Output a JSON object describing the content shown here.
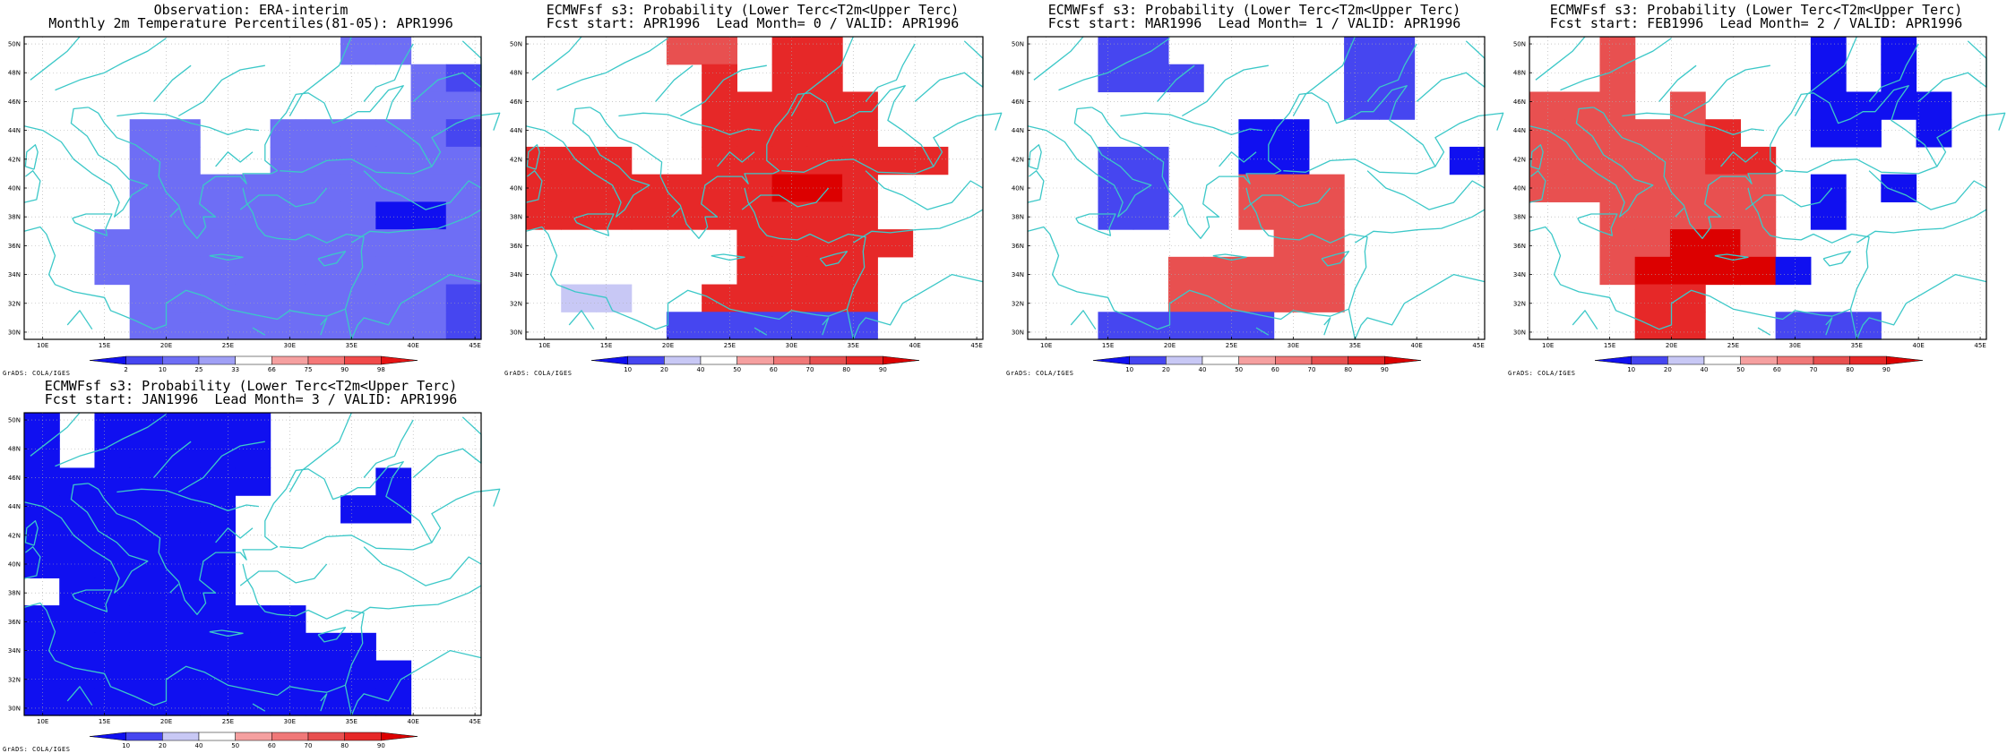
{
  "figure": {
    "lon_ticks": [
      "10E",
      "15E",
      "20E",
      "25E",
      "30E",
      "35E",
      "40E",
      "45E"
    ],
    "lat_ticks": [
      "30N",
      "32N",
      "34N",
      "36N",
      "38N",
      "40N",
      "42N",
      "44N",
      "46N",
      "48N",
      "50N"
    ],
    "credit": "GrADS: COLA/IGES",
    "coastline_color": "#3cc8c8",
    "grid_color": "#aaaaaa"
  },
  "legends": {
    "observation": {
      "levels": [
        "2",
        "10",
        "25",
        "33",
        "66",
        "75",
        "90",
        "98"
      ],
      "colors": [
        "#1010f0",
        "#4646f0",
        "#6e6ef5",
        "#a0a0f5",
        "#ffffff",
        "#f5a0a0",
        "#f57878",
        "#f04a4a",
        "#e61414"
      ]
    },
    "probability": {
      "levels": [
        "10",
        "20",
        "40",
        "50",
        "60",
        "70",
        "80",
        "90"
      ],
      "colors": [
        "#1010f0",
        "#4646f0",
        "#c8c8f5",
        "#ffffff",
        "#f5a0a0",
        "#f07878",
        "#e85050",
        "#e62828",
        "#dc0000"
      ]
    }
  },
  "panels": [
    {
      "id": "obs",
      "title_line1": "Observation: ERA-interim",
      "title_line2": "Monthly 2m Temperature Percentiles(81-05): APR1996",
      "legend": "observation",
      "grid": [
        ".........CC..",
        "...........CB",
        "...........CC",
        "...CC..CCCCCB",
        "...CC..CCCCCC",
        "...CCCCCCCCCC",
        "...CCCCCCCAAC",
        "..CCCCCCCCCCC",
        "..CCCCCCCCCCC",
        "...CCCCCCCCCB",
        "...CCCCCCCCCB"
      ]
    },
    {
      "id": "lead0",
      "title_line1": "ECMWFsf s3: Probability (Lower Terc<T2m<Upper Terc)",
      "title_line2": "Fcst start: APR1996  Lead Month= 0 / VALID: APR1996",
      "legend": "probability",
      "grid": [
        "....GG.HH....",
        ".....H.HH....",
        ".....HHHHH...",
        ".....HHHHH...",
        "HHH..HHHHHHH.",
        "HHHHHHHIIH...",
        "HHHHHHHHHH...",
        "......HHHHH..",
        "......HHHH...",
        ".CC..HHHHH...",
        "....BBBBBB..."
      ]
    },
    {
      "id": "lead1",
      "title_line1": "ECMWFsf s3: Probability (Lower Terc<T2m<Upper Terc)",
      "title_line2": "Fcst start: MAR1996  Lead Month= 1 / VALID: APR1996",
      "legend": "probability",
      "grid": [
        "..BB.....BB..",
        "..BBB....BB..",
        ".........BB..",
        "......AA.....",
        "..BB..AA....A",
        "..BB..GGG....",
        "..BB..GGG....",
        ".......GG....",
        "....GGGGG....",
        "....GGGGG....",
        "..BBBBB......"
      ]
    },
    {
      "id": "lead2",
      "title_line1": "ECMWFsf s3: Probability (Lower Terc<T2m<Upper Terc)",
      "title_line2": "Fcst start: FEB1996  Lead Month= 2 / VALID: APR1996",
      "legend": "probability",
      "grid": [
        "..G.....A.A..",
        "..G.....A.A..",
        "GGG.G...AAAA.",
        "GGGGGH..AA.A.",
        "GGGGGHH......",
        "GGGGGGG.A.A..",
        "..GGGGG.A....",
        "..GGIIG......",
        "..GIIIIA.....",
        "...HH........",
        "...HH..BBB..."
      ]
    },
    {
      "id": "lead3",
      "title_line1": "ECMWFsf s3: Probability (Lower Terc<T2m<Upper Terc)",
      "title_line2": "Fcst start: JAN1996  Lead Month= 3 / VALID: APR1996",
      "legend": "probability",
      "grid": [
        "A.AAAAA......",
        "A.AAAAA......",
        "AAAAAAA...A..",
        "AAAAAA...AA..",
        "AAAAAA.......",
        "AAAAAA.......",
        ".AAAAA.......",
        "AAAAAAAA.....",
        "AAAAAAAAAA...",
        "AAAAAAAAAAA..",
        "AAAAAAAAAAA.."
      ]
    }
  ]
}
